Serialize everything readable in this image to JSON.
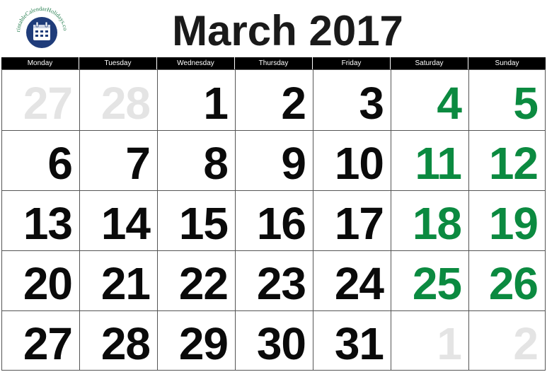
{
  "logo": {
    "text": "PrintableCalendarHolidays.com",
    "colors": {
      "circle": "#1f3c7a",
      "calendar": "#ffffff",
      "text": "#1f7a4a"
    }
  },
  "title": "March 2017",
  "weekdays": [
    "Monday",
    "Tuesday",
    "Wednesday",
    "Thursday",
    "Friday",
    "Saturday",
    "Sunday"
  ],
  "weeks": [
    [
      {
        "day": "27",
        "type": "other"
      },
      {
        "day": "28",
        "type": "other"
      },
      {
        "day": "1",
        "type": "current"
      },
      {
        "day": "2",
        "type": "current"
      },
      {
        "day": "3",
        "type": "current"
      },
      {
        "day": "4",
        "type": "weekend"
      },
      {
        "day": "5",
        "type": "weekend"
      }
    ],
    [
      {
        "day": "6",
        "type": "current"
      },
      {
        "day": "7",
        "type": "current"
      },
      {
        "day": "8",
        "type": "current"
      },
      {
        "day": "9",
        "type": "current"
      },
      {
        "day": "10",
        "type": "current"
      },
      {
        "day": "11",
        "type": "weekend"
      },
      {
        "day": "12",
        "type": "weekend"
      }
    ],
    [
      {
        "day": "13",
        "type": "current"
      },
      {
        "day": "14",
        "type": "current"
      },
      {
        "day": "15",
        "type": "current"
      },
      {
        "day": "16",
        "type": "current"
      },
      {
        "day": "17",
        "type": "current"
      },
      {
        "day": "18",
        "type": "weekend"
      },
      {
        "day": "19",
        "type": "weekend"
      }
    ],
    [
      {
        "day": "20",
        "type": "current"
      },
      {
        "day": "21",
        "type": "current"
      },
      {
        "day": "22",
        "type": "current"
      },
      {
        "day": "23",
        "type": "current"
      },
      {
        "day": "24",
        "type": "current"
      },
      {
        "day": "25",
        "type": "weekend"
      },
      {
        "day": "26",
        "type": "weekend"
      }
    ],
    [
      {
        "day": "27",
        "type": "current"
      },
      {
        "day": "28",
        "type": "current"
      },
      {
        "day": "29",
        "type": "current"
      },
      {
        "day": "30",
        "type": "current"
      },
      {
        "day": "31",
        "type": "current"
      },
      {
        "day": "1",
        "type": "other"
      },
      {
        "day": "2",
        "type": "other"
      }
    ]
  ],
  "colors": {
    "weekday_number": "#0a0a0a",
    "weekend_number": "#0b8a40",
    "adjacent_month_number": "#e4e4e4",
    "header_bar": "#000000"
  }
}
